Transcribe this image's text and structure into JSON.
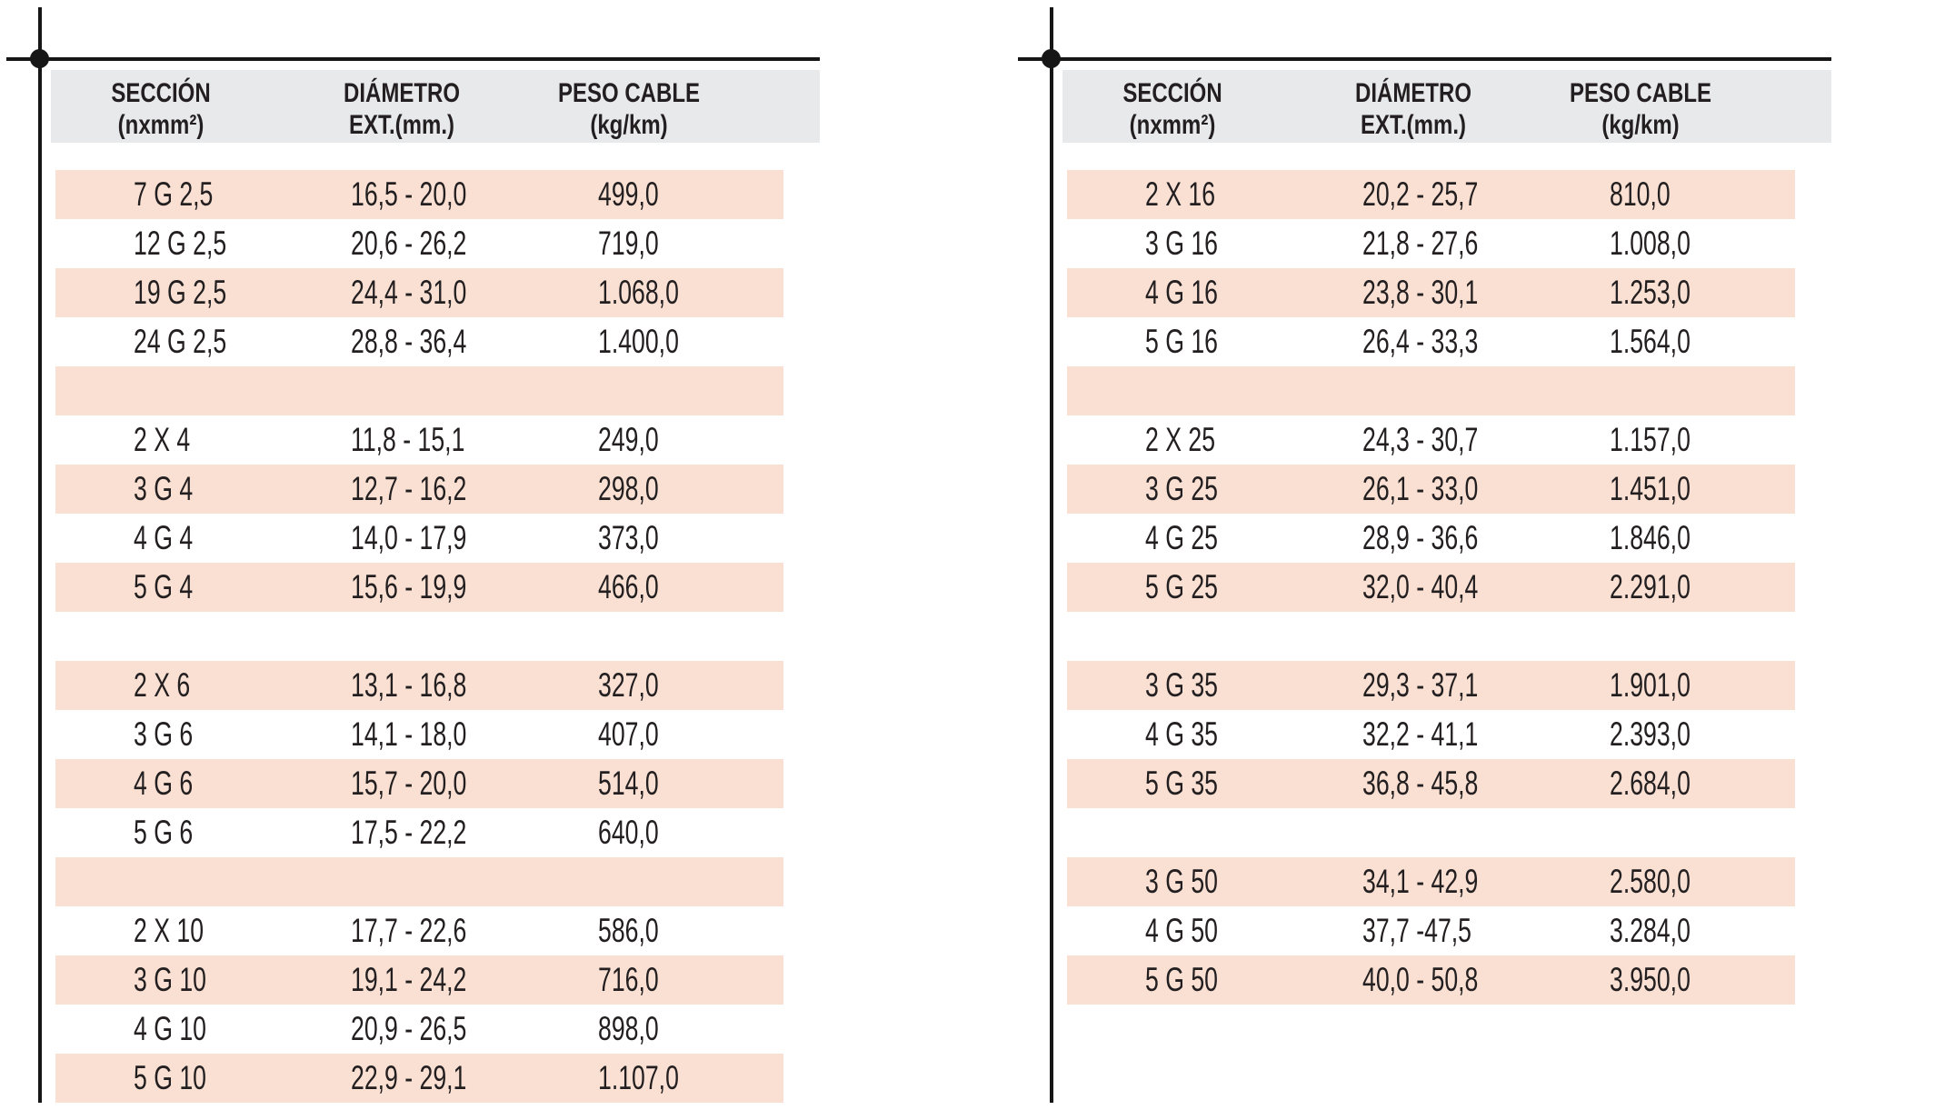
{
  "colors": {
    "row_highlight": "#f9e0d3",
    "header_bg": "#e8e9ea",
    "text": "#231f20",
    "crop_mark": "#161616"
  },
  "tables": [
    {
      "id": "left",
      "headers": [
        {
          "line1": "SECCIÓN",
          "line2": "(nxmm²)"
        },
        {
          "line1": "DIÁMETRO",
          "line2": "EXT.(mm.)"
        },
        {
          "line1": "PESO CABLE",
          "line2": "(kg/km)"
        }
      ],
      "rows": [
        [
          "7 G 2,5",
          "16,5 - 20,0",
          "499,0"
        ],
        [
          "12 G 2,5",
          "20,6 - 26,2",
          "719,0"
        ],
        [
          "19 G 2,5",
          "24,4 - 31,0",
          "1.068,0"
        ],
        [
          "24 G 2,5",
          "28,8 - 36,4",
          "1.400,0"
        ],
        [
          "",
          "",
          ""
        ],
        [
          "2 X 4",
          "11,8 - 15,1",
          "249,0"
        ],
        [
          "3 G 4",
          "12,7 - 16,2",
          "298,0"
        ],
        [
          "4 G 4",
          "14,0 - 17,9",
          "373,0"
        ],
        [
          "5 G 4",
          "15,6 - 19,9",
          "466,0"
        ],
        [
          "",
          "",
          ""
        ],
        [
          "2 X 6",
          "13,1 - 16,8",
          "327,0"
        ],
        [
          "3 G 6",
          "14,1 - 18,0",
          "407,0"
        ],
        [
          "4 G 6",
          "15,7 - 20,0",
          "514,0"
        ],
        [
          "5 G 6",
          "17,5 - 22,2",
          "640,0"
        ],
        [
          "",
          "",
          ""
        ],
        [
          "2 X 10",
          "17,7 - 22,6",
          "586,0"
        ],
        [
          "3 G 10",
          "19,1 - 24,2",
          "716,0"
        ],
        [
          "4 G 10",
          "20,9 - 26,5",
          "898,0"
        ],
        [
          "5 G 10",
          "22,9 - 29,1",
          "1.107,0"
        ]
      ]
    },
    {
      "id": "right",
      "headers": [
        {
          "line1": "SECCIÓN",
          "line2": "(nxmm²)"
        },
        {
          "line1": "DIÁMETRO",
          "line2": "EXT.(mm.)"
        },
        {
          "line1": "PESO CABLE",
          "line2": "(kg/km)"
        }
      ],
      "rows": [
        [
          "2 X 16",
          "20,2 - 25,7",
          "810,0"
        ],
        [
          "3 G 16",
          "21,8 - 27,6",
          "1.008,0"
        ],
        [
          "4 G 16",
          "23,8 - 30,1",
          "1.253,0"
        ],
        [
          "5 G 16",
          "26,4 - 33,3",
          "1.564,0"
        ],
        [
          "",
          "",
          ""
        ],
        [
          "2 X 25",
          "24,3 - 30,7",
          "1.157,0"
        ],
        [
          "3 G 25",
          "26,1 - 33,0",
          "1.451,0"
        ],
        [
          "4 G 25",
          "28,9 - 36,6",
          "1.846,0"
        ],
        [
          "5 G 25",
          "32,0 - 40,4",
          "2.291,0"
        ],
        [
          "",
          "",
          ""
        ],
        [
          "3 G 35",
          "29,3 - 37,1",
          "1.901,0"
        ],
        [
          "4 G 35",
          "32,2 - 41,1",
          "2.393,0"
        ],
        [
          "5 G 35",
          "36,8 - 45,8",
          "2.684,0"
        ],
        [
          "",
          "",
          ""
        ],
        [
          "3 G 50",
          "34,1 - 42,9",
          "2.580,0"
        ],
        [
          "4 G 50",
          "37,7 -47,5",
          "3.284,0"
        ],
        [
          "5 G 50",
          "40,0 - 50,8",
          "3.950,0"
        ]
      ]
    }
  ]
}
